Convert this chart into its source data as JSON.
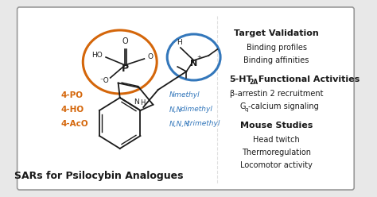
{
  "fig_width": 4.74,
  "fig_height": 2.48,
  "dpi": 100,
  "bg_color": "#e8e8e8",
  "box_color": "#ffffff",
  "box_border_color": "#999999",
  "orange_color": "#D4660A",
  "blue_color": "#3377BB",
  "black_color": "#1a1a1a",
  "title_text": "Target Validation",
  "sub1_text": "Binding profiles",
  "sub2_text": "Binding affinities",
  "sub3_text": "β-arrestin 2 recruitment",
  "sub4_text": "Gⁱ-calcium signaling",
  "title3_text": "Mouse Studies",
  "sub5_text": "Head twitch",
  "sub6_text": "Thermoregulation",
  "sub7_text": "Locomotor activity",
  "bottom_text": "SARs for Psilocybin Analogues",
  "orange_labels": [
    "4-PO",
    "4-HO",
    "4-AcO"
  ],
  "blue_italic_prefixes": [
    "N",
    "N,N",
    "N,N,N"
  ],
  "blue_italic_suffixes": [
    "-methyl",
    "-dimethyl",
    "-trimethyl"
  ]
}
